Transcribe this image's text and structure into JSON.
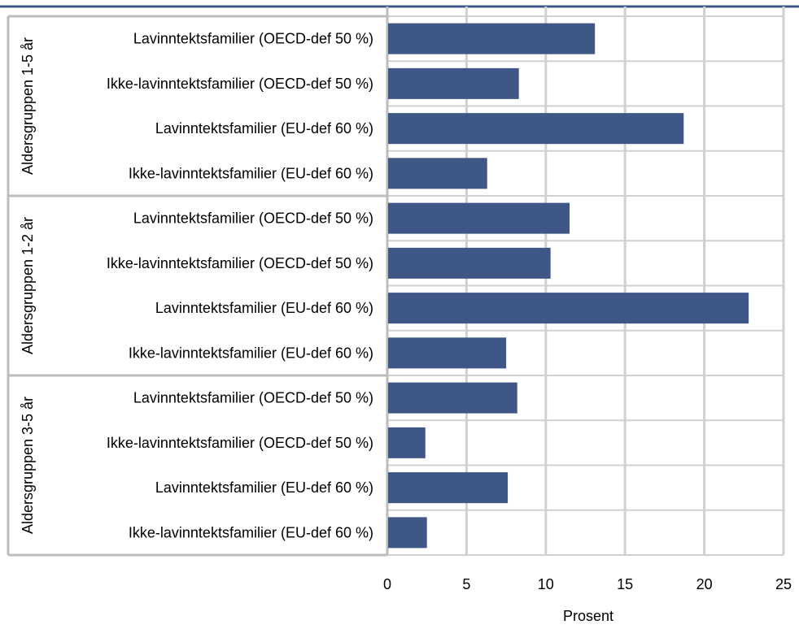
{
  "chart_data": {
    "type": "bar",
    "orientation": "horizontal",
    "xlabel": "Prosent",
    "xlim": [
      0,
      25
    ],
    "x_ticks": [
      0,
      5,
      10,
      15,
      20,
      25
    ],
    "grid": true,
    "bar_color": "#3f5786",
    "groups": [
      {
        "label": "Aldersgruppen 1-5 år",
        "categories": [
          "Lavinntektsfamilier (OECD-def 50 %)",
          "Ikke-lavinntektsfamilier (OECD-def 50 %)",
          "Lavinntektsfamilier (EU-def 60 %)",
          "Ikke-lavinntektsfamilier (EU-def 60 %)"
        ],
        "values": [
          13.1,
          8.3,
          18.7,
          6.3
        ]
      },
      {
        "label": "Aldersgruppen 1-2 år",
        "categories": [
          "Lavinntektsfamilier (OECD-def 50 %)",
          "Ikke-lavinntektsfamilier (OECD-def 50 %)",
          "Lavinntektsfamilier (EU-def 60 %)",
          "Ikke-lavinntektsfamilier (EU-def 60 %)"
        ],
        "values": [
          11.5,
          10.3,
          22.8,
          7.5
        ]
      },
      {
        "label": "Aldersgruppen 3-5 år",
        "categories": [
          "Lavinntektsfamilier (OECD-def 50 %)",
          "Ikke-lavinntektsfamilier (OECD-def 50 %)",
          "Lavinntektsfamilier (EU-def 60 %)",
          "Ikke-lavinntektsfamilier (EU-def 60 %)"
        ],
        "values": [
          8.2,
          2.4,
          7.6,
          2.5
        ]
      }
    ]
  }
}
